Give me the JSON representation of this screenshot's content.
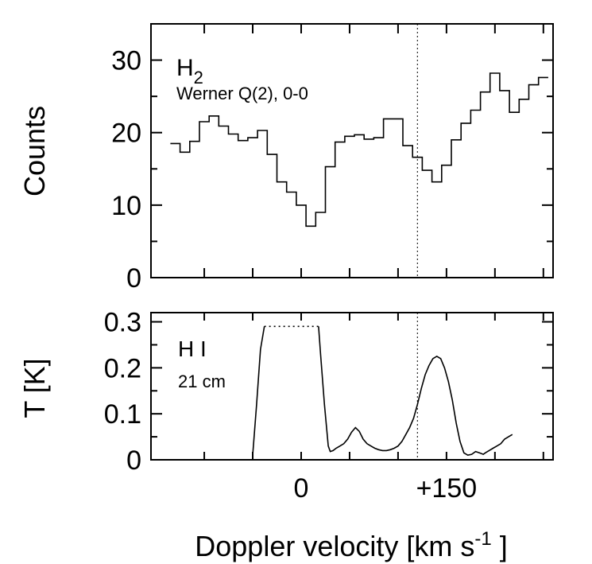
{
  "chart_data": [
    {
      "type": "line",
      "step": true,
      "ylabel": "Counts",
      "ylim": [
        0,
        35
      ],
      "yticks": [
        0,
        10,
        20,
        30
      ],
      "xlim": [
        -155,
        260
      ],
      "annotation": {
        "species": "H",
        "species_sub": "2",
        "line": "Werner Q(2), 0-0"
      },
      "x": [
        -130,
        -120,
        -110,
        -100,
        -90,
        -80,
        -70,
        -60,
        -50,
        -40,
        -30,
        -20,
        -10,
        0,
        10,
        20,
        30,
        40,
        50,
        60,
        70,
        80,
        90,
        100,
        110,
        120,
        130,
        140,
        150,
        160,
        170,
        180,
        190,
        200,
        210,
        220,
        230,
        240,
        250
      ],
      "values": [
        18.5,
        17.3,
        18.8,
        21.5,
        22.3,
        20.9,
        19.8,
        18.9,
        19.3,
        20.3,
        17.0,
        13.2,
        11.8,
        10.0,
        7.1,
        9.0,
        15.3,
        18.7,
        19.5,
        19.7,
        19.1,
        19.3,
        21.9,
        21.9,
        18.2,
        16.6,
        14.8,
        13.2,
        15.5,
        19.0,
        21.3,
        23.1,
        25.6,
        28.2,
        25.8,
        22.8,
        24.6,
        26.6,
        27.6
      ]
    },
    {
      "type": "line",
      "ylabel": "T [K]",
      "ylim": [
        0,
        0.3
      ],
      "yticks": [
        0,
        0.1,
        0.2,
        0.3
      ],
      "xlim": [
        -155,
        260
      ],
      "xticks": [
        0,
        150
      ],
      "xticklabels": [
        "0",
        "+150"
      ],
      "xlabel": "Doppler velocity [km s",
      "xlabel_sup": "-1",
      "xlabel_end": " ]",
      "annotation": {
        "species": "H I",
        "line": "21 cm"
      },
      "saturated_segment": {
        "x": [
          -38,
          18
        ],
        "y": 0.29
      },
      "x": [
        -50,
        -46,
        -42,
        -38,
        18,
        20,
        24,
        28,
        30,
        33,
        36,
        40,
        44,
        48,
        52,
        56,
        60,
        64,
        68,
        72,
        76,
        80,
        84,
        88,
        92,
        96,
        100,
        104,
        108,
        112,
        116,
        120,
        124,
        128,
        132,
        136,
        140,
        144,
        148,
        152,
        156,
        160,
        164,
        168,
        172,
        176,
        180,
        184,
        188,
        190,
        194,
        198,
        202,
        206,
        210,
        214,
        218
      ],
      "values": [
        0.01,
        0.12,
        0.24,
        0.29,
        0.29,
        0.23,
        0.12,
        0.03,
        0.018,
        0.02,
        0.025,
        0.03,
        0.035,
        0.045,
        0.06,
        0.07,
        0.062,
        0.045,
        0.035,
        0.03,
        0.025,
        0.022,
        0.02,
        0.02,
        0.022,
        0.025,
        0.03,
        0.04,
        0.055,
        0.07,
        0.09,
        0.12,
        0.155,
        0.185,
        0.205,
        0.22,
        0.225,
        0.22,
        0.2,
        0.17,
        0.13,
        0.08,
        0.04,
        0.015,
        0.01,
        0.012,
        0.018,
        0.015,
        0.012,
        0.015,
        0.02,
        0.025,
        0.03,
        0.035,
        0.045,
        0.05,
        0.055
      ]
    }
  ],
  "marker_velocity": 120
}
